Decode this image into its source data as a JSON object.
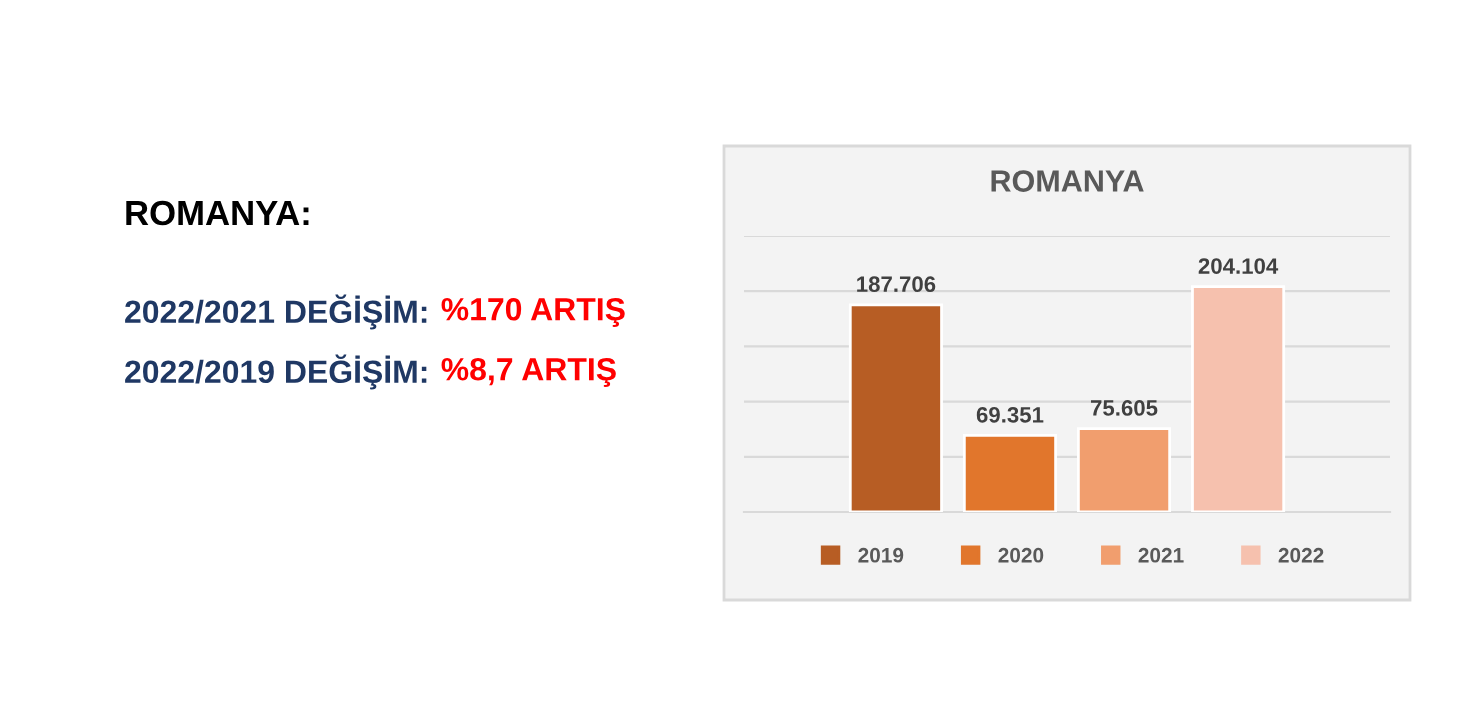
{
  "chart_data": {
    "type": "bar",
    "title": "ROMANYA",
    "categories": [
      null
    ],
    "series": [
      {
        "name": "2019",
        "color": "#b75d24",
        "values": [
          187706
        ],
        "value_labels": [
          "187.706"
        ]
      },
      {
        "name": "2020",
        "color": "#e1762c",
        "values": [
          69351
        ],
        "value_labels": [
          "69.351"
        ]
      },
      {
        "name": "2021",
        "color": "#f19e6e",
        "values": [
          75605
        ],
        "value_labels": [
          "75.605"
        ]
      },
      {
        "name": "2022",
        "color": "#f6c1ae",
        "values": [
          204104
        ],
        "value_labels": [
          "204.104"
        ]
      }
    ],
    "ylim": [
      0,
      250000
    ],
    "yticks": [
      {
        "value": 0,
        "label": null
      },
      {
        "value": 50000,
        "label": null
      },
      {
        "value": 100000,
        "label": null
      },
      {
        "value": 150000,
        "label": null
      },
      {
        "value": 200000,
        "label": null
      },
      {
        "value": 250000,
        "label": null
      }
    ],
    "grid": "y",
    "legend": "bottom",
    "annotations": [
      "ROMANYA:",
      "2022/2021 DEĞİŞİM:",
      "%170 ARTIŞ",
      "2022/2019 DEĞİŞİM:",
      "%8,7 ARTIŞ"
    ]
  }
}
